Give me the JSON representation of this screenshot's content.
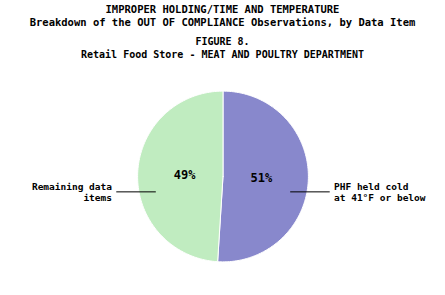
{
  "chart_data": {
    "type": "pie",
    "title": [
      "IMPROPER HOLDING/TIME AND TEMPERATURE",
      "Breakdown of the OUT OF COMPLIANCE Observations, by Data Item"
    ],
    "subtitle": [
      "FIGURE 8.",
      "Retail Food Store - MEAT AND POULTRY DEPARTMENT"
    ],
    "categories": [
      "PHF held cold\nat 41°F or below",
      "Remaining data\nitems"
    ],
    "values": [
      51,
      49
    ],
    "value_labels": [
      "51%",
      "49%"
    ],
    "colors": [
      "#8888cc",
      "#c0ecc0"
    ],
    "data_labels": true
  }
}
